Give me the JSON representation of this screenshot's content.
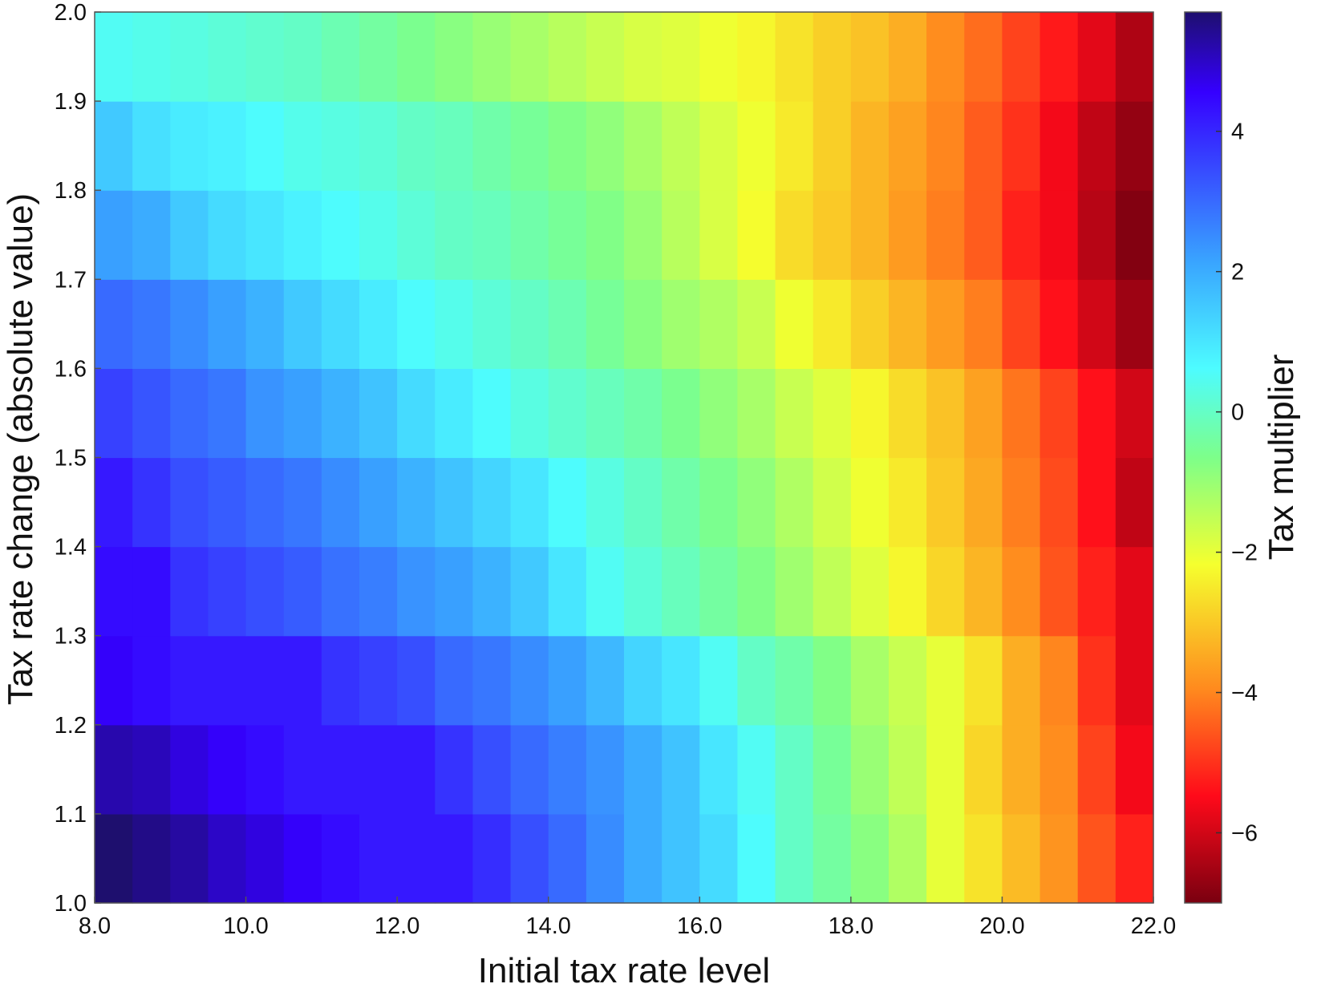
{
  "chart_data": {
    "type": "heatmap",
    "xlabel": "Initial tax rate level",
    "ylabel": "Tax rate change (absolute value)",
    "colorbar_label": "Tax multiplier",
    "colormap": "jet",
    "xlim": [
      8.0,
      22.0
    ],
    "ylim": [
      1.0,
      2.0
    ],
    "clim": [
      -7.0,
      5.7
    ],
    "x_ticks": [
      "8.0",
      "10.0",
      "12.0",
      "14.0",
      "16.0",
      "18.0",
      "20.0",
      "22.0"
    ],
    "x_tick_values": [
      8,
      10,
      12,
      14,
      16,
      18,
      20,
      22
    ],
    "y_ticks": [
      "1.0",
      "1.1",
      "1.2",
      "1.3",
      "1.4",
      "1.5",
      "1.6",
      "1.7",
      "1.8",
      "1.9",
      "2.0"
    ],
    "y_tick_values": [
      1.0,
      1.1,
      1.2,
      1.3,
      1.4,
      1.5,
      1.6,
      1.7,
      1.8,
      1.9,
      2.0
    ],
    "colorbar_ticks": [
      "4",
      "2",
      "0",
      "−2",
      "−4",
      "−6"
    ],
    "colorbar_tick_values": [
      4,
      2,
      0,
      -2,
      -4,
      -6
    ],
    "x_cell_edges": [
      8.0,
      22.0
    ],
    "x_cell_count": 28,
    "y_cell_edges": [
      1.0,
      2.0
    ],
    "y_cell_count": 10,
    "z_row_order": "bottom-to-top (y from 1.0 to 2.0)",
    "z": [
      [
        5.7,
        5.5,
        5.3,
        5.0,
        4.8,
        4.6,
        4.4,
        4.2,
        4.2,
        4.2,
        3.9,
        3.4,
        3.0,
        2.5,
        2.0,
        1.6,
        1.2,
        0.6,
        0.0,
        -0.4,
        -0.8,
        -1.3,
        -2.0,
        -2.6,
        -3.2,
        -3.8,
        -4.6,
        -5.2
      ],
      [
        5.2,
        5.1,
        4.8,
        4.6,
        4.4,
        4.2,
        4.2,
        4.2,
        4.2,
        3.8,
        3.4,
        3.0,
        2.7,
        2.4,
        2.0,
        1.6,
        1.0,
        0.5,
        0.0,
        -0.5,
        -1.0,
        -1.5,
        -2.0,
        -2.8,
        -3.4,
        -3.9,
        -4.8,
        -5.6
      ],
      [
        4.6,
        4.4,
        4.2,
        4.2,
        4.2,
        4.2,
        3.8,
        3.6,
        3.4,
        3.0,
        2.8,
        2.5,
        2.2,
        1.8,
        1.3,
        1.0,
        0.5,
        0.0,
        -0.3,
        -0.7,
        -1.2,
        -1.6,
        -2.0,
        -2.6,
        -3.4,
        -4.0,
        -5.0,
        -5.8
      ],
      [
        4.4,
        4.4,
        3.8,
        3.6,
        3.4,
        3.2,
        2.9,
        2.7,
        2.4,
        2.2,
        1.9,
        1.5,
        1.0,
        0.5,
        0.2,
        -0.1,
        -0.4,
        -0.7,
        -1.1,
        -1.5,
        -1.9,
        -2.3,
        -2.8,
        -3.3,
        -3.9,
        -4.6,
        -5.2,
        -5.8
      ],
      [
        4.2,
        3.8,
        3.4,
        3.2,
        3.0,
        2.8,
        2.5,
        2.2,
        1.9,
        1.6,
        1.3,
        1.0,
        0.6,
        0.3,
        0.0,
        -0.3,
        -0.6,
        -0.9,
        -1.3,
        -1.7,
        -2.1,
        -2.5,
        -3.0,
        -3.5,
        -4.1,
        -4.7,
        -5.4,
        -6.2
      ],
      [
        3.6,
        3.3,
        3.0,
        2.8,
        2.4,
        2.2,
        1.9,
        1.6,
        1.2,
        0.9,
        0.6,
        0.3,
        0.1,
        -0.1,
        -0.3,
        -0.6,
        -0.9,
        -1.2,
        -1.6,
        -1.9,
        -2.3,
        -2.7,
        -3.1,
        -3.6,
        -4.2,
        -4.8,
        -5.4,
        -6.0
      ],
      [
        3.0,
        2.8,
        2.5,
        2.2,
        1.9,
        1.5,
        1.2,
        0.9,
        0.6,
        0.4,
        0.2,
        0.0,
        -0.2,
        -0.5,
        -0.8,
        -1.1,
        -1.3,
        -1.6,
        -2.1,
        -2.5,
        -2.9,
        -3.3,
        -3.7,
        -4.1,
        -4.8,
        -5.4,
        -6.0,
        -6.6
      ],
      [
        2.2,
        2.0,
        1.5,
        1.2,
        1.0,
        0.8,
        0.6,
        0.4,
        0.2,
        0.0,
        -0.1,
        -0.3,
        -0.5,
        -0.7,
        -1.0,
        -1.4,
        -1.8,
        -2.2,
        -2.7,
        -3.0,
        -3.3,
        -3.7,
        -4.1,
        -4.5,
        -5.2,
        -5.6,
        -6.3,
        -6.9
      ],
      [
        1.5,
        1.1,
        0.9,
        0.8,
        0.6,
        0.4,
        0.3,
        0.2,
        0.0,
        -0.1,
        -0.3,
        -0.5,
        -0.7,
        -0.9,
        -1.2,
        -1.5,
        -1.8,
        -2.1,
        -2.5,
        -2.9,
        -3.3,
        -3.6,
        -4.0,
        -4.5,
        -5.0,
        -5.6,
        -6.2,
        -6.7
      ],
      [
        0.5,
        0.4,
        0.3,
        0.2,
        0.1,
        0.0,
        -0.2,
        -0.4,
        -0.6,
        -0.8,
        -1.0,
        -1.2,
        -1.4,
        -1.6,
        -1.8,
        -1.9,
        -2.1,
        -2.3,
        -2.6,
        -2.9,
        -3.1,
        -3.4,
        -3.9,
        -4.3,
        -4.8,
        -5.3,
        -5.8,
        -6.4
      ]
    ]
  }
}
